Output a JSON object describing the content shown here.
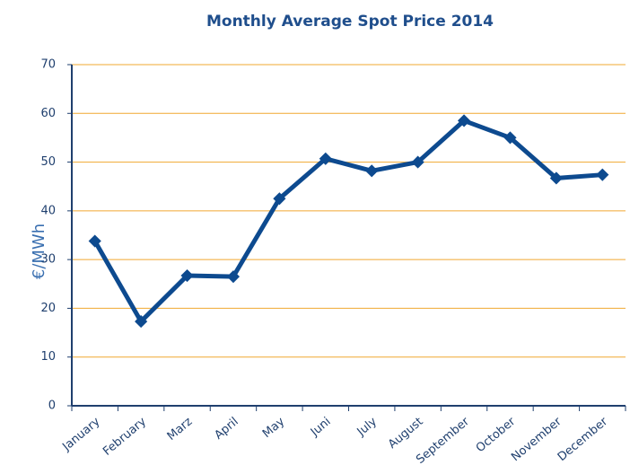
{
  "chart_data": {
    "type": "line",
    "title": "Monthly Average Spot Price 2014",
    "y_label": "€/MWh",
    "categories": [
      "January",
      "February",
      "Marz",
      "April",
      "May",
      "Juni",
      "July",
      "August",
      "September",
      "October",
      "November",
      "December"
    ],
    "series": [
      {
        "name": "Spot Price",
        "color": "#0d4a8f",
        "values": [
          33.8,
          17.3,
          26.7,
          26.5,
          42.5,
          50.7,
          48.2,
          50.0,
          58.5,
          55.0,
          46.7,
          47.4
        ]
      }
    ],
    "ylim": [
      0,
      70
    ],
    "yticks": [
      0,
      10,
      20,
      30,
      40,
      50,
      60,
      70
    ],
    "grid": true,
    "grid_color": "#f0a830"
  }
}
